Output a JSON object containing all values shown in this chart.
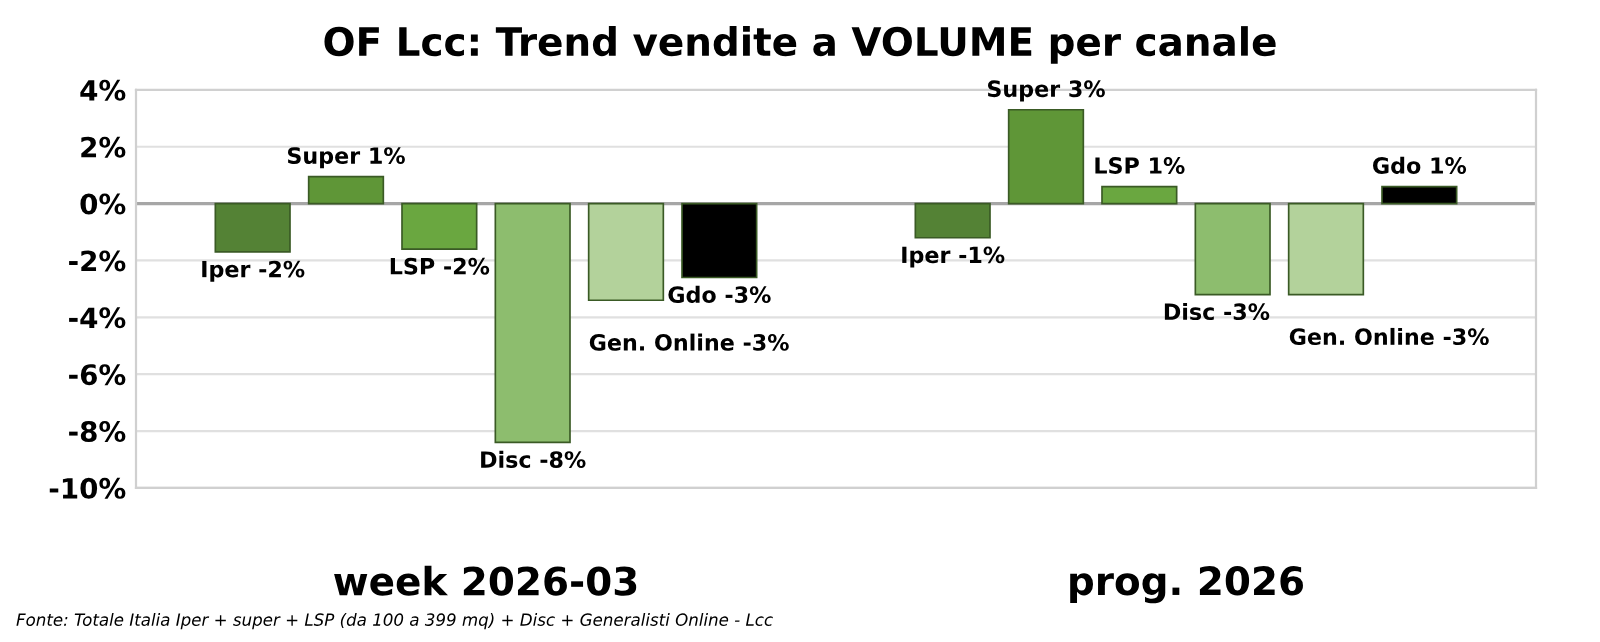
{
  "chart_data": {
    "type": "bar",
    "title": "OF Lcc: Trend vendite a VOLUME per canale",
    "categories": [
      "week 2026-03",
      "prog. 2026"
    ],
    "series": [
      {
        "name": "Iper",
        "color": "#548235",
        "values": [
          -1.7,
          -1.2
        ],
        "value_labels": [
          "-2%",
          "-1%"
        ]
      },
      {
        "name": "Super",
        "color": "#5f9637",
        "values": [
          0.95,
          3.3
        ],
        "value_labels": [
          "1%",
          "3%"
        ]
      },
      {
        "name": "LSP",
        "color": "#6aa740",
        "values": [
          -1.6,
          0.6
        ],
        "value_labels": [
          "-2%",
          "1%"
        ]
      },
      {
        "name": "Disc",
        "color": "#8dbd6e",
        "values": [
          -8.4,
          -3.2
        ],
        "value_labels": [
          "-8%",
          "-3%"
        ]
      },
      {
        "name": "Gen. Online",
        "color": "#b3d29b",
        "values": [
          -3.4,
          -3.2
        ],
        "value_labels": [
          "-3%",
          "-3%"
        ]
      },
      {
        "name": "Gdo",
        "color": "#000000",
        "values": [
          -2.6,
          0.6
        ],
        "value_labels": [
          "-3%",
          "1%"
        ]
      }
    ],
    "ylim": [
      -10,
      4
    ],
    "yticks": [
      {
        "value": -10,
        "label": "-10%"
      },
      {
        "value": -8,
        "label": "-8%"
      },
      {
        "value": -6,
        "label": "-6%"
      },
      {
        "value": -4,
        "label": "-4%"
      },
      {
        "value": -2,
        "label": "-2%"
      },
      {
        "value": 0,
        "label": "0%"
      },
      {
        "value": 2,
        "label": "2%"
      },
      {
        "value": 4,
        "label": "4%"
      }
    ],
    "grid": "y",
    "legend": false,
    "annotations": [
      "Fonte: Totale Italia Iper + super + LSP (da 100 a 399 mq) + Disc + Generalisti Online - Lcc"
    ]
  }
}
